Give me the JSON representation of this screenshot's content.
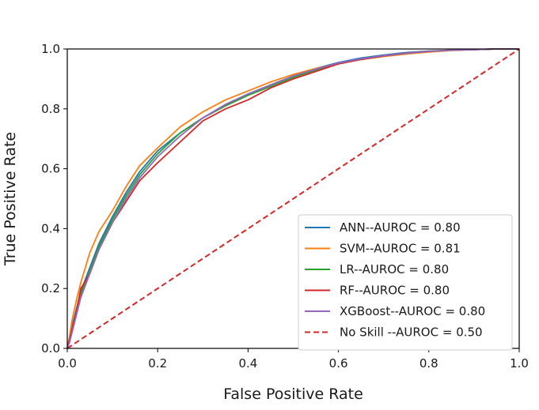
{
  "chart_data": {
    "type": "line",
    "title": "",
    "xlabel": "False Positive Rate",
    "ylabel": "True Positive Rate",
    "xlim": [
      0.0,
      1.0
    ],
    "ylim": [
      0.0,
      1.0
    ],
    "xticks": [
      "0.0",
      "0.2",
      "0.4",
      "0.6",
      "0.8",
      "1.0"
    ],
    "yticks": [
      "0.0",
      "0.2",
      "0.4",
      "0.6",
      "0.8",
      "1.0"
    ],
    "grid": false,
    "legend_position": "lower-right",
    "series": [
      {
        "name": "ANN--AUROC = 0.80",
        "color": "#1f77b4",
        "dash": false,
        "x": [
          0,
          0.005,
          0.01,
          0.02,
          0.03,
          0.05,
          0.07,
          0.1,
          0.13,
          0.16,
          0.2,
          0.25,
          0.3,
          0.35,
          0.4,
          0.45,
          0.5,
          0.55,
          0.6,
          0.65,
          0.7,
          0.75,
          0.8,
          0.85,
          0.9,
          0.95,
          1.0
        ],
        "y": [
          0,
          0.03,
          0.07,
          0.13,
          0.19,
          0.27,
          0.35,
          0.44,
          0.52,
          0.59,
          0.66,
          0.72,
          0.77,
          0.81,
          0.85,
          0.88,
          0.91,
          0.935,
          0.955,
          0.97,
          0.98,
          0.988,
          0.993,
          0.996,
          0.998,
          1.0,
          1.0
        ]
      },
      {
        "name": "SVM--AUROC = 0.81",
        "color": "#ff7f0e",
        "dash": false,
        "x": [
          0,
          0.005,
          0.01,
          0.02,
          0.03,
          0.05,
          0.07,
          0.1,
          0.13,
          0.16,
          0.2,
          0.25,
          0.3,
          0.35,
          0.4,
          0.45,
          0.5,
          0.55,
          0.6,
          0.65,
          0.7,
          0.75,
          0.8,
          0.85,
          0.9,
          0.95,
          1.0
        ],
        "y": [
          0,
          0.04,
          0.09,
          0.16,
          0.22,
          0.32,
          0.39,
          0.46,
          0.54,
          0.61,
          0.67,
          0.74,
          0.79,
          0.83,
          0.86,
          0.89,
          0.915,
          0.935,
          0.952,
          0.965,
          0.975,
          0.983,
          0.99,
          0.995,
          0.998,
          1.0,
          1.0
        ]
      },
      {
        "name": "LR--AUROC = 0.80",
        "color": "#2ca02c",
        "dash": false,
        "x": [
          0,
          0.005,
          0.01,
          0.02,
          0.03,
          0.05,
          0.07,
          0.1,
          0.13,
          0.16,
          0.2,
          0.25,
          0.3,
          0.35,
          0.4,
          0.45,
          0.5,
          0.55,
          0.6,
          0.65,
          0.7,
          0.75,
          0.8,
          0.85,
          0.9,
          0.95,
          1.0
        ],
        "y": [
          0,
          0.03,
          0.06,
          0.12,
          0.18,
          0.26,
          0.34,
          0.43,
          0.51,
          0.58,
          0.65,
          0.72,
          0.77,
          0.81,
          0.845,
          0.875,
          0.905,
          0.93,
          0.95,
          0.965,
          0.977,
          0.986,
          0.992,
          0.996,
          0.998,
          1.0,
          1.0
        ]
      },
      {
        "name": "RF--AUROC = 0.80",
        "color": "#d62728",
        "dash": false,
        "x": [
          0,
          0.005,
          0.01,
          0.02,
          0.03,
          0.05,
          0.07,
          0.1,
          0.13,
          0.16,
          0.2,
          0.25,
          0.3,
          0.35,
          0.4,
          0.45,
          0.5,
          0.55,
          0.6,
          0.65,
          0.7,
          0.75,
          0.8,
          0.85,
          0.9,
          0.95,
          1.0
        ],
        "y": [
          0,
          0.03,
          0.06,
          0.12,
          0.2,
          0.25,
          0.33,
          0.42,
          0.49,
          0.56,
          0.62,
          0.69,
          0.76,
          0.8,
          0.83,
          0.87,
          0.9,
          0.925,
          0.95,
          0.965,
          0.977,
          0.986,
          0.992,
          0.996,
          0.998,
          1.0,
          1.0
        ]
      },
      {
        "name": "XGBoost--AUROC = 0.80",
        "color": "#9467bd",
        "dash": false,
        "x": [
          0,
          0.005,
          0.01,
          0.02,
          0.03,
          0.05,
          0.07,
          0.1,
          0.13,
          0.16,
          0.2,
          0.25,
          0.3,
          0.35,
          0.4,
          0.45,
          0.5,
          0.55,
          0.6,
          0.65,
          0.7,
          0.75,
          0.8,
          0.85,
          0.9,
          0.95,
          1.0
        ],
        "y": [
          0,
          0.02,
          0.05,
          0.11,
          0.17,
          0.25,
          0.33,
          0.42,
          0.5,
          0.57,
          0.64,
          0.71,
          0.77,
          0.815,
          0.85,
          0.88,
          0.91,
          0.933,
          0.953,
          0.967,
          0.978,
          0.986,
          0.992,
          0.996,
          0.998,
          1.0,
          1.0
        ]
      },
      {
        "name": "No Skill --AUROC = 0.50",
        "color": "#d62728",
        "dash": true,
        "x": [
          0,
          1
        ],
        "y": [
          0,
          1
        ]
      }
    ]
  }
}
